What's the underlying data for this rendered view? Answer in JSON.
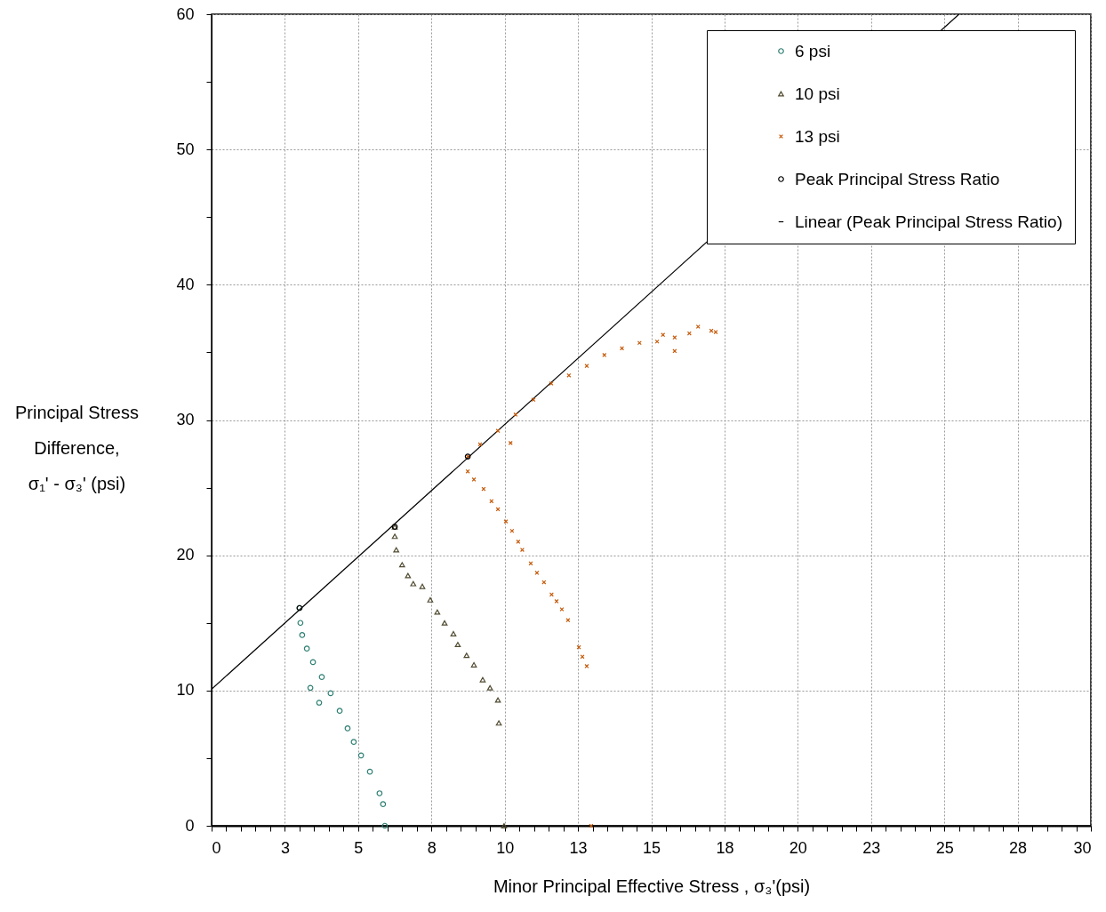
{
  "chart_data": {
    "type": "scatter",
    "xlabel": "Minor Principal Effective Stress , σ₃'(psi)",
    "ylabel": "Principal Stress\nDifference,\nσ₁' - σ₃' (psi)",
    "xlim": [
      0,
      30
    ],
    "ylim": [
      0,
      60
    ],
    "xticks": [
      {
        "value": 0,
        "label": "0"
      },
      {
        "value": 0.5,
        "label": null
      },
      {
        "value": 1,
        "label": null
      },
      {
        "value": 1.5,
        "label": null
      },
      {
        "value": 2,
        "label": null
      },
      {
        "value": 2.5,
        "label": "3"
      },
      {
        "value": 3,
        "label": null
      },
      {
        "value": 3.5,
        "label": null
      },
      {
        "value": 4,
        "label": null
      },
      {
        "value": 4.5,
        "label": null
      },
      {
        "value": 5,
        "label": "5"
      },
      {
        "value": 5.5,
        "label": null
      },
      {
        "value": 6,
        "label": null
      },
      {
        "value": 6.5,
        "label": null
      },
      {
        "value": 7,
        "label": null
      },
      {
        "value": 7.5,
        "label": "8"
      },
      {
        "value": 8,
        "label": null
      },
      {
        "value": 8.5,
        "label": null
      },
      {
        "value": 9,
        "label": null
      },
      {
        "value": 9.5,
        "label": null
      },
      {
        "value": 10,
        "label": "10"
      },
      {
        "value": 10.5,
        "label": null
      },
      {
        "value": 11,
        "label": null
      },
      {
        "value": 11.5,
        "label": null
      },
      {
        "value": 12,
        "label": null
      },
      {
        "value": 12.5,
        "label": "13"
      },
      {
        "value": 13,
        "label": null
      },
      {
        "value": 13.5,
        "label": null
      },
      {
        "value": 14,
        "label": null
      },
      {
        "value": 14.5,
        "label": null
      },
      {
        "value": 15,
        "label": "15"
      },
      {
        "value": 15.5,
        "label": null
      },
      {
        "value": 16,
        "label": null
      },
      {
        "value": 16.5,
        "label": null
      },
      {
        "value": 17,
        "label": null
      },
      {
        "value": 17.5,
        "label": "18"
      },
      {
        "value": 18,
        "label": null
      },
      {
        "value": 18.5,
        "label": null
      },
      {
        "value": 19,
        "label": null
      },
      {
        "value": 19.5,
        "label": null
      },
      {
        "value": 20,
        "label": "20"
      },
      {
        "value": 20.5,
        "label": null
      },
      {
        "value": 21,
        "label": null
      },
      {
        "value": 21.5,
        "label": null
      },
      {
        "value": 22,
        "label": null
      },
      {
        "value": 22.5,
        "label": "23"
      },
      {
        "value": 23,
        "label": null
      },
      {
        "value": 23.5,
        "label": null
      },
      {
        "value": 24,
        "label": null
      },
      {
        "value": 24.5,
        "label": null
      },
      {
        "value": 25,
        "label": "25"
      },
      {
        "value": 25.5,
        "label": null
      },
      {
        "value": 26,
        "label": null
      },
      {
        "value": 26.5,
        "label": null
      },
      {
        "value": 27,
        "label": null
      },
      {
        "value": 27.5,
        "label": "28"
      },
      {
        "value": 28,
        "label": null
      },
      {
        "value": 28.5,
        "label": null
      },
      {
        "value": 29,
        "label": null
      },
      {
        "value": 29.5,
        "label": null
      },
      {
        "value": 30,
        "label": "30"
      }
    ],
    "yticks": [
      0,
      {
        "value": 5,
        "label": null
      },
      10,
      {
        "value": 15,
        "label": null
      },
      20,
      {
        "value": 25,
        "label": null
      },
      30,
      {
        "value": 35,
        "label": null
      },
      40,
      {
        "value": 45,
        "label": null
      },
      50,
      {
        "value": 55,
        "label": null
      },
      60
    ],
    "grid": true,
    "legend": "top right",
    "series": [
      {
        "name": "6 psi",
        "marker": "circle",
        "color": "#2e7f74",
        "x": [
          5.91,
          5.85,
          5.73,
          5.4,
          5.1,
          4.85,
          4.64,
          4.37,
          4.06,
          3.76,
          3.46,
          3.25,
          3.09,
          3.03,
          3.0,
          3.67,
          3.37
        ],
        "values": [
          0,
          1.6,
          2.4,
          4.0,
          5.2,
          6.2,
          7.2,
          8.5,
          9.8,
          11.0,
          12.1,
          13.1,
          14.1,
          15.0,
          16.1,
          9.1,
          10.2
        ]
      },
      {
        "name": "10 psi",
        "marker": "triangle",
        "color": "#4f4a30",
        "x": [
          9.98,
          9.8,
          9.77,
          9.5,
          9.25,
          8.95,
          8.7,
          8.4,
          8.25,
          7.95,
          7.7,
          7.46,
          7.19,
          6.88,
          6.7,
          6.5,
          6.3,
          6.25,
          6.25
        ],
        "values": [
          0,
          7.6,
          9.3,
          10.2,
          10.8,
          11.9,
          12.6,
          13.4,
          14.2,
          15.0,
          15.8,
          16.7,
          17.7,
          17.9,
          18.5,
          19.3,
          20.4,
          21.4,
          22.1
        ]
      },
      {
        "name": "13 psi",
        "marker": "cross",
        "color": "#c55a0a",
        "x": [
          12.95,
          12.8,
          12.65,
          12.53,
          12.16,
          11.95,
          11.77,
          11.6,
          11.34,
          11.1,
          10.89,
          10.6,
          10.46,
          10.25,
          10.04,
          9.77,
          9.55,
          9.28,
          8.95,
          8.74,
          8.74,
          9.16,
          9.77,
          10.37,
          10.98,
          11.59,
          12.19,
          12.8,
          13.4,
          14.0,
          14.6,
          15.2,
          15.8,
          16.3,
          16.6,
          17.05,
          17.2,
          10.2,
          15.4,
          15.8
        ],
        "values": [
          0,
          11.8,
          12.5,
          13.2,
          15.2,
          16.0,
          16.6,
          17.1,
          18.0,
          18.7,
          19.4,
          20.4,
          21.0,
          21.8,
          22.5,
          23.4,
          24.0,
          24.9,
          25.6,
          26.2,
          27.3,
          28.2,
          29.2,
          30.4,
          31.5,
          32.7,
          33.3,
          34.0,
          34.8,
          35.3,
          35.7,
          35.8,
          36.1,
          36.4,
          36.9,
          36.6,
          36.5,
          28.3,
          36.3,
          35.1
        ]
      },
      {
        "name": "Peak Principal Stress Ratio",
        "marker": "circle",
        "color": "#000000",
        "x": [
          3.0,
          6.25,
          8.74
        ],
        "values": [
          16.1,
          22.1,
          27.3
        ]
      },
      {
        "name": "Linear (Peak Principal Stress Ratio)",
        "type": "line",
        "marker": "none",
        "line_style": "solid",
        "color": "#000000",
        "x": [
          0,
          25.5
        ],
        "values": [
          10.1,
          60
        ]
      }
    ]
  }
}
